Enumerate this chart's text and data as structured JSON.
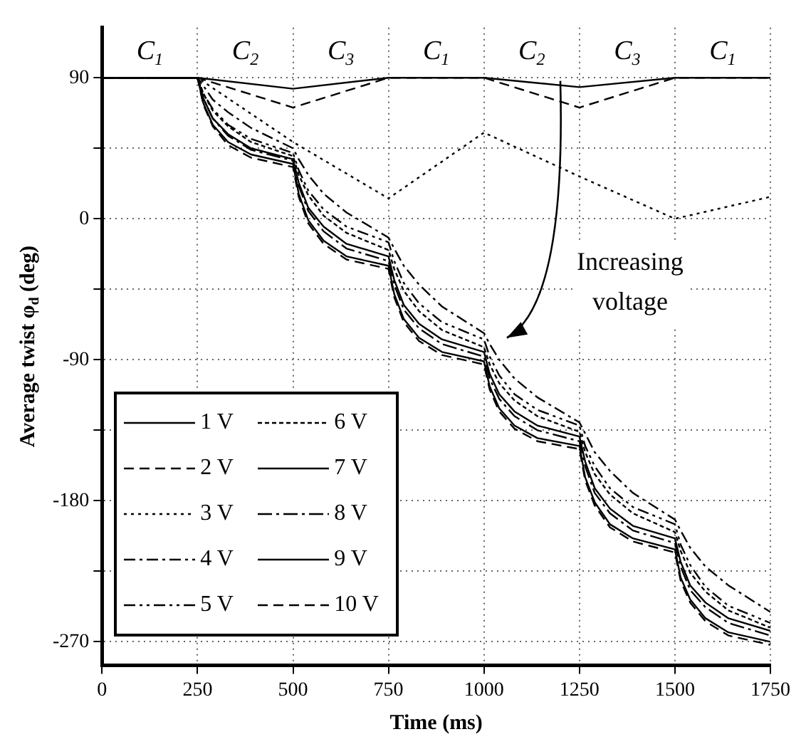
{
  "chart_data": {
    "type": "line",
    "xlabel": "Time (ms)",
    "ylabel": "Average twist φ$_{d}$ (deg)",
    "x": [
      0,
      250,
      265,
      290,
      330,
      390,
      500,
      515,
      540,
      580,
      640,
      750,
      765,
      790,
      830,
      890,
      1000,
      1015,
      1040,
      1080,
      1140,
      1250,
      1265,
      1290,
      1330,
      1390,
      1500,
      1515,
      1540,
      1580,
      1640,
      1750
    ],
    "xlim": [
      0,
      1750
    ],
    "xticks": [
      0,
      250,
      500,
      750,
      1000,
      1250,
      1500,
      1750
    ],
    "ylim": [
      -285,
      122
    ],
    "yticks": [
      -270,
      {
        "value": -225,
        "label": null
      },
      -180,
      {
        "value": -135,
        "label": null
      },
      -90,
      {
        "value": -45,
        "label": null
      },
      0,
      {
        "value": 45,
        "label": null
      },
      90
    ],
    "grid": true,
    "legend": "bottom left",
    "series": [
      {
        "name": "1 V",
        "color": "#000000",
        "line_style": "solid",
        "x": [
          0,
          250,
          500,
          750,
          1000,
          1250,
          1500,
          1750
        ],
        "values": [
          90,
          90,
          83,
          90,
          90,
          84,
          90,
          90
        ]
      },
      {
        "name": "2 V",
        "color": "#000000",
        "line_style": "dashed",
        "x": [
          0,
          250,
          500,
          750,
          1000,
          1250,
          1500,
          1750
        ],
        "values": [
          90,
          90,
          71,
          90,
          90,
          71,
          90,
          90
        ]
      },
      {
        "name": "3 V",
        "color": "#000000",
        "line_style": "dotted",
        "x": [
          0,
          250,
          500,
          750,
          1000,
          1250,
          1500,
          1750
        ],
        "values": [
          90,
          90,
          49,
          13,
          55,
          27,
          0,
          14
        ]
      },
      {
        "name": "4 V",
        "color": "#000000",
        "line_style": "dashed",
        "values": [
          90,
          90,
          85,
          76,
          68,
          58,
          45,
          38,
          28,
          16,
          4,
          -12,
          -19,
          -30,
          -42,
          -56,
          -73,
          -80,
          -90,
          -102,
          -114,
          -130,
          -137,
          -149,
          -161,
          -175,
          -192,
          -199,
          -210,
          -222,
          -234,
          -251
        ]
      },
      {
        "name": "5 V",
        "color": "#000000",
        "line_style": "dashed",
        "values": [
          90,
          90,
          80,
          70,
          60,
          51,
          42,
          31,
          18,
          6,
          -5,
          -15,
          -27,
          -41,
          -54,
          -66,
          -77,
          -88,
          -100,
          -112,
          -122,
          -132,
          -145,
          -158,
          -172,
          -184,
          -195,
          -208,
          -221,
          -235,
          -247,
          -258
        ]
      },
      {
        "name": "6 V",
        "color": "#000000",
        "line_style": "dotted",
        "values": [
          90,
          90,
          80,
          69,
          59,
          49,
          40,
          28,
          15,
          2,
          -9,
          -20,
          -32,
          -46,
          -59,
          -71,
          -82,
          -93,
          -105,
          -116,
          -126,
          -136,
          -149,
          -163,
          -176,
          -188,
          -200,
          -212,
          -226,
          -238,
          -250,
          -261
        ]
      },
      {
        "name": "7 V",
        "color": "#000000",
        "line_style": "solid",
        "values": [
          90,
          90,
          77,
          64,
          54,
          45,
          38,
          23,
          7,
          -5,
          -16,
          -24,
          -39,
          -55,
          -67,
          -77,
          -85,
          -99,
          -112,
          -123,
          -132,
          -139,
          -155,
          -172,
          -185,
          -196,
          -204,
          -219,
          -234,
          -245,
          -255,
          -263
        ]
      },
      {
        "name": "8 V",
        "color": "#000000",
        "line_style": "dashed",
        "values": [
          90,
          90,
          77,
          64,
          53,
          44,
          37,
          21,
          5,
          -8,
          -19,
          -27,
          -42,
          -58,
          -70,
          -80,
          -88,
          -102,
          -115,
          -126,
          -135,
          -142,
          -158,
          -175,
          -188,
          -199,
          -207,
          -222,
          -237,
          -248,
          -258,
          -266
        ]
      },
      {
        "name": "9 V",
        "color": "#000000",
        "line_style": "solid",
        "values": [
          90,
          90,
          74,
          60,
          49,
          41,
          35,
          16,
          -1,
          -14,
          -24,
          -30,
          -48,
          -64,
          -76,
          -85,
          -91,
          -107,
          -121,
          -132,
          -140,
          -145,
          -165,
          -181,
          -195,
          -204,
          -211,
          -229,
          -243,
          -255,
          -264,
          -270
        ]
      },
      {
        "name": "10 V",
        "color": "#000000",
        "line_style": "dashed",
        "values": [
          90,
          90,
          73,
          59,
          47,
          39,
          33,
          14,
          -3,
          -16,
          -26,
          -32,
          -50,
          -66,
          -78,
          -87,
          -93,
          -109,
          -123,
          -134,
          -142,
          -147,
          -167,
          -183,
          -197,
          -206,
          -213,
          -231,
          -245,
          -257,
          -266,
          -272
        ]
      }
    ],
    "annotations": [
      "C$_{1}$",
      "C$_{2}$",
      "C$_{3}$",
      "C$_{1}$",
      "C$_{2}$",
      "C$_{3}$",
      "C$_{1}$",
      "Increasing voltage"
    ]
  }
}
